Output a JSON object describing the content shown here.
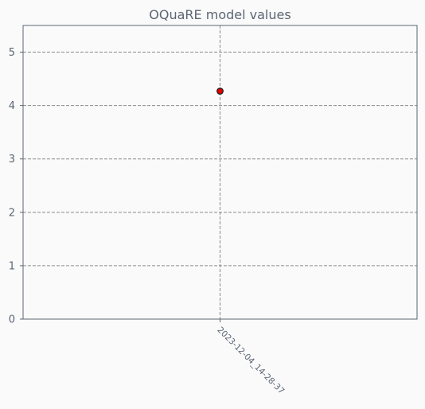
{
  "chart_data": {
    "type": "scatter",
    "title": "OQuaRE model values",
    "xlabel": "",
    "ylabel": "",
    "categories": [
      "2023-12-04_14-28-37"
    ],
    "values": [
      4.27
    ],
    "ylim": [
      0,
      5.5
    ],
    "yticks": [
      0,
      1,
      2,
      3,
      4,
      5
    ],
    "grid": true,
    "grid_style": "dashed",
    "colors": {
      "background": "#fafafa",
      "axes_frame": "#5b6573",
      "grid": "#8a8a8a",
      "text": "#5b6573",
      "marker_fill": "#e30000",
      "marker_edge": "#1a1a1a"
    }
  }
}
